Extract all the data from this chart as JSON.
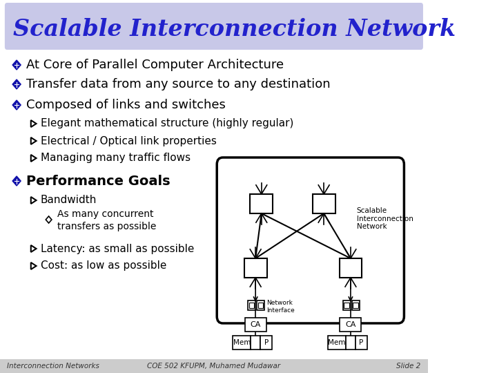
{
  "title": "Scalable Interconnection Network",
  "title_color": "#2222CC",
  "title_bg": "#C8C8E8",
  "slide_bg": "#FFFFFF",
  "footer_bg": "#CCCCCC",
  "bullet1": "At Core of Parallel Computer Architecture",
  "bullet2": "Transfer data from any source to any destination",
  "bullet3": "Composed of links and switches",
  "sub1": "Elegant mathematical structure (highly regular)",
  "sub2": "Electrical / Optical link properties",
  "sub3": "Managing many traffic flows",
  "bullet4": "Performance Goals",
  "sub4": "Bandwidth",
  "subsub1": "As many concurrent\ntransfers as possible",
  "sub5": "Latency: as small as possible",
  "sub6": "Cost: as low as possible",
  "footer_left": "Interconnection Networks",
  "footer_center": "COE 502 KFUPM, Muhamed Mudawar",
  "footer_right": "Slide 2",
  "diagram_label": "Scalable\nInterconnection\nNetwork",
  "ni_label": "Network\nInterface",
  "ca_label": "CA",
  "mem_label": "Mem",
  "p_label": "P"
}
